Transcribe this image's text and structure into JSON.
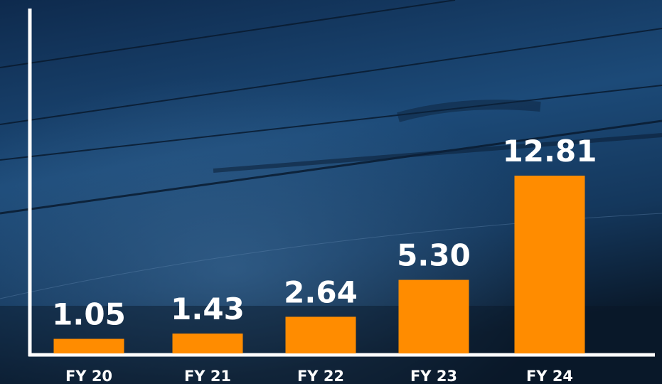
{
  "chart_data": {
    "type": "bar",
    "categories": [
      "FY 20",
      "FY 21",
      "FY 22",
      "FY 23",
      "FY 24"
    ],
    "values": [
      1.05,
      1.43,
      2.64,
      5.3,
      12.81
    ],
    "value_labels": [
      "1.05",
      "1.43",
      "2.64",
      "5.30",
      "12.81"
    ],
    "color": "#ff8c00"
  }
}
